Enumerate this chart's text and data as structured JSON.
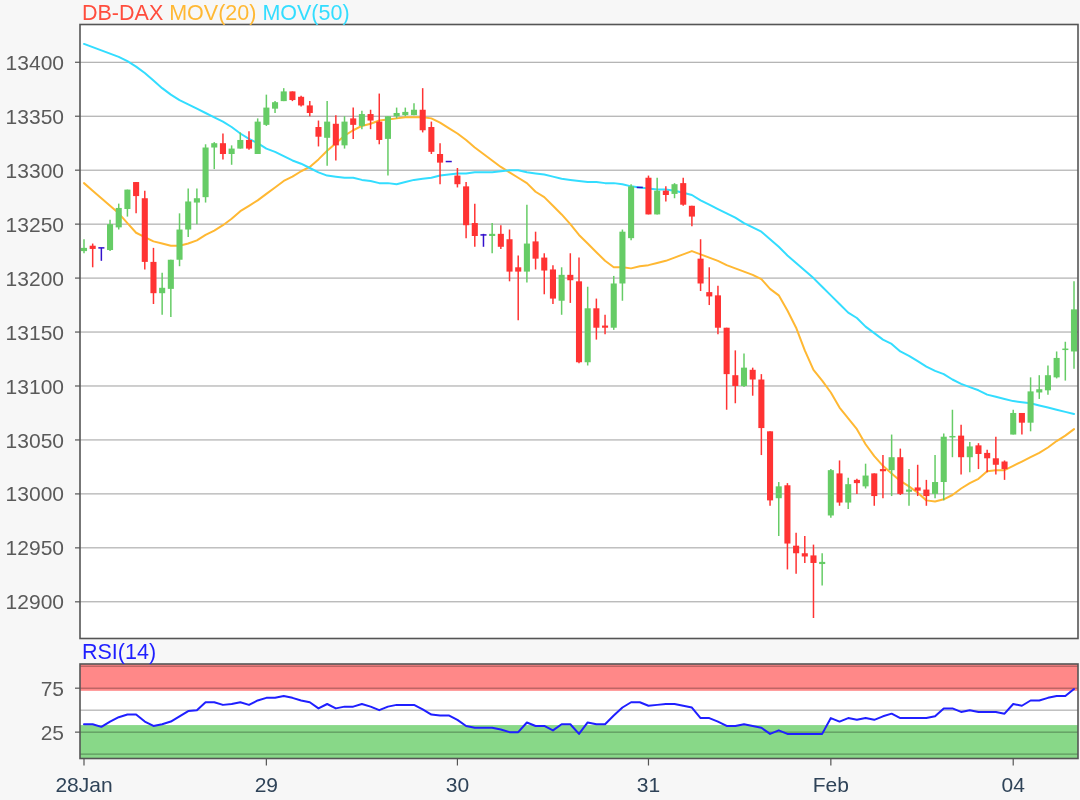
{
  "chart_data": [
    {
      "type": "candlestick",
      "categories": [
        null,
        null,
        null,
        null,
        null,
        null,
        null,
        null,
        null,
        null,
        null,
        null,
        null,
        null,
        null,
        null,
        null,
        null,
        null,
        null,
        null,
        null,
        null,
        null,
        null,
        null,
        null,
        null,
        null,
        null,
        null,
        null,
        null,
        null,
        null,
        null,
        null,
        null,
        null,
        null,
        null,
        null,
        null,
        null,
        null,
        null,
        null,
        null,
        null,
        null,
        null,
        null,
        null,
        null,
        null,
        null,
        null,
        null,
        null,
        null,
        null,
        null,
        null,
        null,
        null,
        null,
        null,
        null,
        null,
        null,
        null,
        null,
        null,
        null,
        null,
        null,
        null,
        null,
        null,
        null,
        null,
        null,
        null,
        null,
        null,
        null,
        null,
        null,
        null,
        null,
        null,
        null,
        null,
        null,
        null,
        null,
        null,
        null,
        null,
        null,
        null,
        null,
        null,
        null,
        null,
        null,
        null,
        null,
        null,
        null,
        null,
        null,
        null,
        null,
        null
      ],
      "series": [
        {
          "name": "DB-DAX",
          "color": "#ff4d3d",
          "ohlc": [
            [
              13225,
              13236,
              13223,
              13228
            ],
            [
              13230,
              13232,
              13210,
              13227
            ],
            [
              13228,
              13228,
              13216,
              13228
            ],
            [
              13226,
              13254,
              13225,
              13250
            ],
            [
              13247,
              13269,
              13245,
              13265
            ],
            [
              13264,
              13282,
              13257,
              13282
            ],
            [
              13289,
              13289,
              13260,
              13276
            ],
            [
              13274,
              13281,
              13208,
              13215
            ],
            [
              13215,
              13228,
              13176,
              13186
            ],
            [
              13186,
              13205,
              13166,
              13191
            ],
            [
              13190,
              13217,
              13164,
              13217
            ],
            [
              13217,
              13260,
              13211,
              13245
            ],
            [
              13245,
              13283,
              13238,
              13271
            ],
            [
              13270,
              13283,
              13250,
              13274
            ],
            [
              13275,
              13324,
              13270,
              13321
            ],
            [
              13321,
              13326,
              13301,
              13325
            ],
            [
              13325,
              13334,
              13310,
              13315
            ],
            [
              13315,
              13323,
              13305,
              13320
            ],
            [
              13320,
              13335,
              13320,
              13328
            ],
            [
              13328,
              13336,
              13319,
              13320
            ],
            [
              13315,
              13348,
              13315,
              13345
            ],
            [
              13342,
              13370,
              13341,
              13358
            ],
            [
              13357,
              13364,
              13353,
              13363
            ],
            [
              13364,
              13376,
              13364,
              13373
            ],
            [
              13373,
              13373,
              13364,
              13365
            ],
            [
              13368,
              13369,
              13359,
              13360
            ],
            [
              13360,
              13364,
              13350,
              13353
            ],
            [
              13340,
              13346,
              13322,
              13331
            ],
            [
              13330,
              13364,
              13304,
              13345
            ],
            [
              13343,
              13351,
              13309,
              13323
            ],
            [
              13323,
              13350,
              13320,
              13345
            ],
            [
              13348,
              13358,
              13329,
              13342
            ],
            [
              13341,
              13355,
              13338,
              13352
            ],
            [
              13352,
              13356,
              13338,
              13346
            ],
            [
              13345,
              13371,
              13324,
              13328
            ],
            [
              13329,
              13350,
              13295,
              13350
            ],
            [
              13350,
              13358,
              13348,
              13353
            ],
            [
              13351,
              13358,
              13350,
              13354
            ],
            [
              13351,
              13362,
              13351,
              13356
            ],
            [
              13356,
              13376,
              13335,
              13337
            ],
            [
              13340,
              13345,
              13315,
              13317
            ],
            [
              13315,
              13325,
              13287,
              13307
            ],
            [
              13308,
              13308,
              13308,
              13308
            ],
            [
              13295,
              13302,
              13284,
              13287
            ],
            [
              13285,
              13289,
              13237,
              13249
            ],
            [
              13251,
              13269,
              13229,
              13239
            ],
            [
              13240,
              13241,
              13229,
              13240
            ],
            [
              13239,
              13251,
              13223,
              13241
            ],
            [
              13241,
              13249,
              13227,
              13229
            ],
            [
              13236,
              13245,
              13197,
              13206
            ],
            [
              13210,
              13221,
              13161,
              13206
            ],
            [
              13206,
              13268,
              13196,
              13232
            ],
            [
              13234,
              13243,
              13208,
              13218
            ],
            [
              13219,
              13223,
              13185,
              13207
            ],
            [
              13208,
              13212,
              13176,
              13181
            ],
            [
              13179,
              13210,
              13166,
              13203
            ],
            [
              13203,
              13223,
              13177,
              13198
            ],
            [
              13197,
              13219,
              13121,
              13122
            ],
            [
              13122,
              13192,
              13119,
              13172
            ],
            [
              13172,
              13181,
              13143,
              13154
            ],
            [
              13156,
              13166,
              13148,
              13154
            ],
            [
              13154,
              13202,
              13152,
              13195
            ],
            [
              13195,
              13245,
              13179,
              13243
            ],
            [
              13237,
              13287,
              13235,
              13285
            ],
            [
              13284,
              13284,
              13284,
              13284
            ],
            [
              13293,
              13295,
              13259,
              13259
            ],
            [
              13259,
              13293,
              13259,
              13281
            ],
            [
              13281,
              13285,
              13271,
              13277
            ],
            [
              13278,
              13288,
              13274,
              13287
            ],
            [
              13288,
              13293,
              13267,
              13268
            ],
            [
              13267,
              13267,
              13248,
              13257
            ],
            [
              13218,
              13236,
              13188,
              13195
            ],
            [
              13187,
              13210,
              13175,
              13183
            ],
            [
              13184,
              13193,
              13148,
              13154
            ],
            [
              13154,
              13154,
              13078,
              13111
            ],
            [
              13110,
              13133,
              13084,
              13100
            ],
            [
              13100,
              13130,
              13099,
              13117
            ],
            [
              13115,
              13117,
              13091,
              13106
            ],
            [
              13106,
              13111,
              13036,
              13061
            ],
            [
              13058,
              13058,
              12989,
              12994
            ],
            [
              12996,
              13011,
              12961,
              13007
            ],
            [
              13008,
              13010,
              12930,
              12954
            ],
            [
              12952,
              12964,
              12926,
              12945
            ],
            [
              12945,
              12961,
              12936,
              12942
            ],
            [
              12943,
              12953,
              12885,
              12936
            ],
            [
              12935,
              12945,
              12915,
              12937
            ],
            [
              12980,
              13023,
              12978,
              13022
            ],
            [
              13019,
              13031,
              12989,
              12992
            ],
            [
              12992,
              13015,
              12986,
              13009
            ],
            [
              13013,
              13014,
              13000,
              13010
            ],
            [
              13007,
              13028,
              13005,
              13017
            ],
            [
              13019,
              13019,
              12989,
              12998
            ],
            [
              13023,
              13036,
              12996,
              13021
            ],
            [
              13022,
              13055,
              12998,
              13034
            ],
            [
              13034,
              13042,
              12999,
              13000
            ],
            [
              13002,
              13023,
              12989,
              13004
            ],
            [
              13006,
              13027,
              12998,
              13003
            ],
            [
              13004,
              13013,
              12989,
              12998
            ],
            [
              13000,
              13036,
              12996,
              13011
            ],
            [
              13011,
              13056,
              12994,
              13053
            ],
            [
              13052,
              13078,
              13034,
              13053
            ],
            [
              13054,
              13064,
              13018,
              13034
            ],
            [
              13034,
              13048,
              13020,
              13044
            ],
            [
              13045,
              13047,
              13023,
              13037
            ],
            [
              13038,
              13041,
              13020,
              13033
            ],
            [
              13033,
              13053,
              13018,
              13027
            ],
            [
              13030,
              13031,
              13013,
              13023
            ],
            [
              13055,
              13078,
              13055,
              13075
            ],
            [
              13075,
              13075,
              13055,
              13066
            ],
            [
              13066,
              13108,
              13058,
              13095
            ],
            [
              13094,
              13110,
              13088,
              13097
            ],
            [
              13096,
              13119,
              13092,
              13110
            ],
            [
              13108,
              13132,
              13107,
              13126
            ],
            [
              13133,
              13141,
              13105,
              13134
            ],
            [
              13132,
              13197,
              13116,
              13171
            ]
          ],
          "colors": [
            "#66cc66",
            "#ff3333",
            "#3311cc",
            "#66cc66",
            "#66cc66",
            "#66cc66",
            "#ff3333",
            "#ff3333",
            "#ff3333",
            "#66cc66",
            "#66cc66",
            "#66cc66",
            "#66cc66",
            "#66cc66",
            "#66cc66",
            "#66cc66",
            "#ff3333",
            "#66cc66",
            "#66cc66",
            "#ff3333",
            "#66cc66",
            "#66cc66",
            "#66cc66",
            "#66cc66",
            "#ff3333",
            "#ff3333",
            "#ff3333",
            "#ff3333",
            "#66cc66",
            "#ff3333",
            "#66cc66",
            "#ff3333",
            "#66cc66",
            "#ff3333",
            "#ff3333",
            "#66cc66",
            "#66cc66",
            "#66cc66",
            "#66cc66",
            "#ff3333",
            "#ff3333",
            "#ff3333",
            "#3311cc",
            "#ff3333",
            "#ff3333",
            "#ff3333",
            "#3311cc",
            "#66cc66",
            "#ff3333",
            "#ff3333",
            "#ff3333",
            "#66cc66",
            "#ff3333",
            "#ff3333",
            "#ff3333",
            "#66cc66",
            "#ff3333",
            "#ff3333",
            "#66cc66",
            "#ff3333",
            "#ff3333",
            "#66cc66",
            "#66cc66",
            "#66cc66",
            "#3311cc",
            "#ff3333",
            "#66cc66",
            "#ff3333",
            "#66cc66",
            "#ff3333",
            "#ff3333",
            "#ff3333",
            "#ff3333",
            "#ff3333",
            "#ff3333",
            "#ff3333",
            "#66cc66",
            "#ff3333",
            "#ff3333",
            "#ff3333",
            "#66cc66",
            "#ff3333",
            "#ff3333",
            "#ff3333",
            "#ff3333",
            "#66cc66",
            "#66cc66",
            "#ff3333",
            "#66cc66",
            "#ff3333",
            "#66cc66",
            "#ff3333",
            "#ff3333",
            "#66cc66",
            "#ff3333",
            "#66cc66",
            "#ff3333",
            "#ff3333",
            "#66cc66",
            "#66cc66",
            "#66cc66",
            "#ff3333",
            "#66cc66",
            "#ff3333",
            "#ff3333",
            "#ff3333",
            "#ff3333",
            "#66cc66",
            "#ff3333",
            "#66cc66",
            "#66cc66",
            "#66cc66",
            "#66cc66",
            "#66cc66",
            "#66cc66"
          ]
        },
        {
          "name": "MOV(20)",
          "type": "line",
          "color": "#ffb833",
          "values": [
            13288,
            13281,
            13274,
            13267,
            13260,
            13251,
            13242,
            13238,
            13234,
            13232,
            13230,
            13230,
            13232,
            13235,
            13240,
            13244,
            13249,
            13255,
            13262,
            13267,
            13272,
            13278,
            13284,
            13290,
            13294,
            13299,
            13303,
            13310,
            13318,
            13325,
            13332,
            13337,
            13341,
            13343,
            13346,
            13347,
            13348,
            13349,
            13349,
            13349,
            13348,
            13344,
            13339,
            13334,
            13328,
            13321,
            13315,
            13309,
            13303,
            13298,
            13293,
            13288,
            13280,
            13275,
            13267,
            13259,
            13250,
            13240,
            13232,
            13224,
            13216,
            13210,
            13210,
            13209,
            13211,
            13212,
            13214,
            13216,
            13219,
            13222,
            13225,
            13222,
            13219,
            13216,
            13212,
            13209,
            13206,
            13203,
            13199,
            13190,
            13184,
            13170,
            13154,
            13133,
            13115,
            13105,
            13094,
            13080,
            13070,
            13060,
            13046,
            13035,
            13026,
            13019,
            13012,
            13007,
            13001,
            12994,
            12993,
            12995,
            12999,
            13005,
            13010,
            13014,
            13021,
            13022,
            13022,
            13026,
            13030,
            13034,
            13038,
            13043,
            13049,
            13054,
            13060
          ]
        },
        {
          "name": "MOV(50)",
          "type": "line",
          "color": "#33ddff",
          "values": [
            13417,
            13414,
            13411,
            13408,
            13405,
            13401,
            13396,
            13390,
            13383,
            13376,
            13370,
            13365,
            13361,
            13357,
            13353,
            13349,
            13345,
            13340,
            13334,
            13329,
            13325,
            13320,
            13317,
            13313,
            13309,
            13306,
            13302,
            13298,
            13295,
            13294,
            13293,
            13293,
            13291,
            13290,
            13288,
            13288,
            13287,
            13289,
            13291,
            13292,
            13293,
            13295,
            13296,
            13297,
            13297,
            13298,
            13298,
            13298,
            13299,
            13300,
            13300,
            13298,
            13297,
            13296,
            13294,
            13292,
            13291,
            13290,
            13289,
            13289,
            13288,
            13288,
            13287,
            13285,
            13284,
            13283,
            13282,
            13282,
            13281,
            13279,
            13277,
            13272,
            13268,
            13264,
            13260,
            13256,
            13251,
            13247,
            13243,
            13236,
            13229,
            13221,
            13214,
            13207,
            13200,
            13192,
            13184,
            13176,
            13168,
            13163,
            13155,
            13149,
            13143,
            13139,
            13132,
            13128,
            13123,
            13118,
            13114,
            13111,
            13106,
            13102,
            13099,
            13096,
            13092,
            13090,
            13088,
            13086,
            13085,
            13084,
            13082,
            13080,
            13078,
            13076,
            13074
          ]
        }
      ],
      "ylim": [
        12866,
        13435
      ],
      "yticks": [
        12900,
        12950,
        13000,
        13050,
        13100,
        13150,
        13200,
        13250,
        13300,
        13350,
        13400
      ],
      "grid": "y",
      "legend": "top left",
      "tick_labels": "y"
    },
    {
      "type": "line",
      "categories": [
        "28Jan",
        null,
        null,
        null,
        null,
        null,
        null,
        null,
        null,
        null,
        null,
        null,
        null,
        null,
        null,
        null,
        null,
        null,
        null,
        null,
        null,
        "29",
        null,
        null,
        null,
        null,
        null,
        null,
        null,
        null,
        null,
        null,
        null,
        null,
        null,
        null,
        null,
        null,
        null,
        null,
        null,
        null,
        null,
        "30",
        null,
        null,
        null,
        null,
        null,
        null,
        null,
        null,
        null,
        null,
        null,
        null,
        null,
        null,
        null,
        null,
        null,
        null,
        null,
        null,
        null,
        "31",
        null,
        null,
        null,
        null,
        null,
        null,
        null,
        null,
        null,
        null,
        null,
        null,
        null,
        null,
        null,
        null,
        null,
        null,
        null,
        null,
        "Feb",
        null,
        null,
        null,
        null,
        null,
        null,
        null,
        null,
        null,
        null,
        null,
        null,
        null,
        null,
        null,
        null,
        null,
        null,
        null,
        null,
        "04",
        null,
        null,
        null,
        null,
        null,
        null,
        null
      ],
      "series": [
        {
          "name": "RSI(14)",
          "color": "#1f1fff",
          "values": [
            34,
            34,
            31,
            37,
            42,
            45,
            45,
            37,
            32,
            34,
            37,
            43,
            49,
            50,
            59,
            59,
            56,
            57,
            59,
            56,
            61,
            64,
            64,
            66,
            64,
            61,
            59,
            52,
            57,
            52,
            54,
            54,
            57,
            54,
            50,
            54,
            56,
            56,
            56,
            51,
            45,
            44,
            44,
            39,
            32,
            30,
            30,
            30,
            28,
            25,
            25,
            36,
            32,
            32,
            27,
            34,
            34,
            23,
            36,
            34,
            34,
            44,
            53,
            59,
            59,
            55,
            56,
            57,
            57,
            55,
            53,
            41,
            41,
            37,
            32,
            32,
            34,
            32,
            30,
            23,
            27,
            23,
            23,
            23,
            23,
            23,
            41,
            37,
            41,
            39,
            41,
            39,
            43,
            46,
            41,
            41,
            41,
            41,
            43,
            52,
            52,
            48,
            50,
            48,
            48,
            48,
            46,
            57,
            55,
            61,
            61,
            64,
            66,
            66,
            74
          ]
        }
      ],
      "ylim": [
        -5,
        102.5
      ],
      "yticks": [
        {
          "value": 0,
          "label": null
        },
        25,
        {
          "value": 50,
          "label": null
        },
        75,
        {
          "value": 100,
          "label": null
        }
      ],
      "bands": [
        {
          "axis": "y",
          "from": 72,
          "to": 102.5,
          "color": "#ff8888"
        },
        {
          "axis": "y",
          "from": -5,
          "to": 33,
          "color": "#88d888"
        }
      ],
      "grid": "y",
      "legend": "top left"
    }
  ]
}
